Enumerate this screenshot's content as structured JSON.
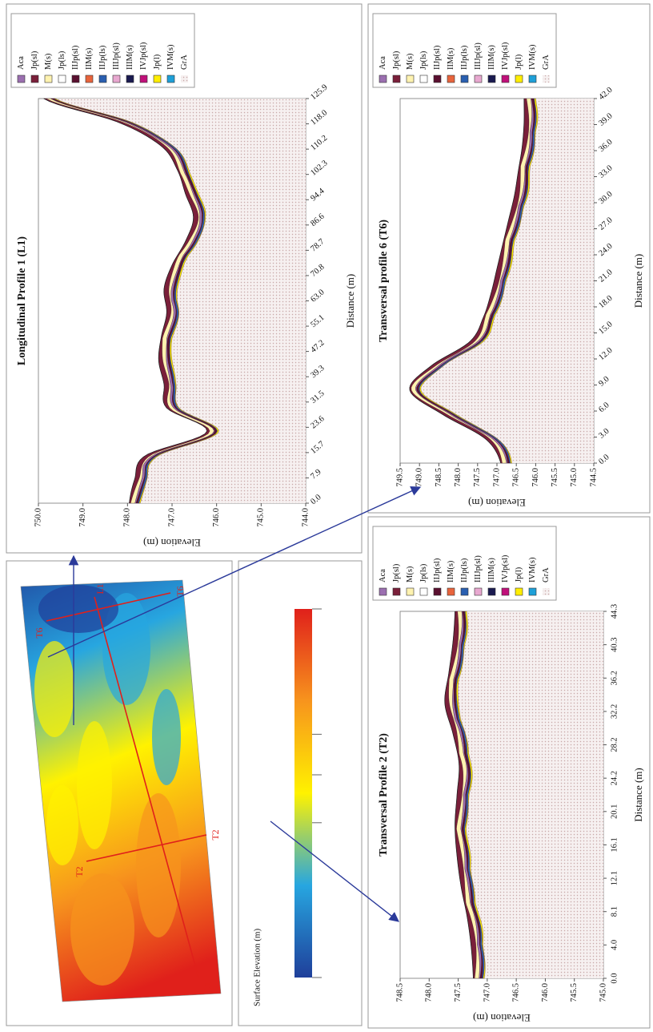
{
  "map": {
    "markers": [
      "T6",
      "L1",
      "T6",
      "T2",
      "T2",
      "L1"
    ]
  },
  "colorbar": {
    "title": "Surface Elevation (m)",
    "colors": [
      "#1f3f9a",
      "#27a6e0",
      "#fff200",
      "#f7941d",
      "#e0201b"
    ]
  },
  "profiles": [
    {
      "title": "Longitudinal Profile 1 (L1)",
      "y_label": "Elevation (m)",
      "x_label": "Distance (m)",
      "yticks": [
        "750.0",
        "749.0",
        "748.0",
        "747.0",
        "746.0",
        "745.0",
        "744.0"
      ],
      "xticks": [
        "0.0",
        "7.9",
        "15.7",
        "23.6",
        "31.5",
        "39.3",
        "47.2",
        "55.1",
        "63.0",
        "70.8",
        "78.7",
        "86.6",
        "94.4",
        "102.3",
        "110.2",
        "118.0",
        "125.9"
      ],
      "legend": [
        {
          "name": "Aca",
          "color": "#9b6fb0"
        },
        {
          "name": "Jp(sl)",
          "color": "#7a1f3a"
        },
        {
          "name": "M(s)",
          "color": "#fff3b0"
        },
        {
          "name": "Jp(ls)",
          "color": "#ffffff"
        },
        {
          "name": "IIJp(sl)",
          "color": "#5a1030"
        },
        {
          "name": "IIM(s)",
          "color": "#e8643c"
        },
        {
          "name": "IIJp(ls)",
          "color": "#2a5fb0"
        },
        {
          "name": "IIIJp(sl)",
          "color": "#e8a8d0"
        },
        {
          "name": "IIIM(s)",
          "color": "#1a1a50"
        },
        {
          "name": "IVJp(sl)",
          "color": "#c0107a"
        },
        {
          "name": "Jp(l)",
          "color": "#ffee00"
        },
        {
          "name": "IVM(s)",
          "color": "#1ea0d8"
        },
        {
          "name": "GrA",
          "color": "#c9a9a9"
        }
      ]
    },
    {
      "title": "Transversal Profile 2 (T2)",
      "y_label": "Elevation (m)",
      "x_label": "Distance (m)",
      "yticks": [
        "748.5",
        "748.0",
        "747.5",
        "747.0",
        "746.5",
        "746.0",
        "745.5",
        "745.0"
      ],
      "xticks": [
        "0.0",
        "4.0",
        "8.1",
        "12.1",
        "16.1",
        "20.1",
        "24.2",
        "28.2",
        "32.2",
        "36.2",
        "40.3",
        "44.3"
      ],
      "legend": [
        {
          "name": "Aca",
          "color": "#9b6fb0"
        },
        {
          "name": "Jp(sl)",
          "color": "#7a1f3a"
        },
        {
          "name": "M(s)",
          "color": "#fff3b0"
        },
        {
          "name": "Jp(ls)",
          "color": "#ffffff"
        },
        {
          "name": "IIJp(sl)",
          "color": "#5a1030"
        },
        {
          "name": "IIM(s)",
          "color": "#e8643c"
        },
        {
          "name": "IIJp(ls)",
          "color": "#2a5fb0"
        },
        {
          "name": "IIIJp(sl)",
          "color": "#e8a8d0"
        },
        {
          "name": "IIIM(s)",
          "color": "#1a1a50"
        },
        {
          "name": "IVJp(sl)",
          "color": "#c0107a"
        },
        {
          "name": "Jp(l)",
          "color": "#ffee00"
        },
        {
          "name": "IVM(s)",
          "color": "#1ea0d8"
        },
        {
          "name": "GrA",
          "color": "#c9a9a9"
        }
      ]
    },
    {
      "title": "Transversal profile 6 (T6)",
      "y_label": "Elevation (m)",
      "x_label": "Distance (m)",
      "yticks": [
        "749.5",
        "749.0",
        "748.5",
        "748.0",
        "747.5",
        "747.0",
        "746.5",
        "746.0",
        "745.5",
        "745.0",
        "744.5"
      ],
      "xticks": [
        "0.0",
        "3.0",
        "6.0",
        "9.0",
        "12.0",
        "15.0",
        "18.0",
        "21.0",
        "24.0",
        "27.0",
        "30.0",
        "33.0",
        "36.0",
        "39.0",
        "42.0"
      ],
      "legend": [
        {
          "name": "Aca",
          "color": "#9b6fb0"
        },
        {
          "name": "Jp(sl)",
          "color": "#7a1f3a"
        },
        {
          "name": "M(s)",
          "color": "#fff3b0"
        },
        {
          "name": "Jp(ls)",
          "color": "#ffffff"
        },
        {
          "name": "IIJp(sl)",
          "color": "#5a1030"
        },
        {
          "name": "IIM(s)",
          "color": "#e8643c"
        },
        {
          "name": "IIJp(ls)",
          "color": "#2a5fb0"
        },
        {
          "name": "IIIJp(sl)",
          "color": "#e8a8d0"
        },
        {
          "name": "IIIM(s)",
          "color": "#1a1a50"
        },
        {
          "name": "IVJp(sl)",
          "color": "#c0107a"
        },
        {
          "name": "Jp(l)",
          "color": "#ffee00"
        },
        {
          "name": "IVM(s)",
          "color": "#1ea0d8"
        },
        {
          "name": "GrA",
          "color": "#c9a9a9"
        }
      ]
    }
  ]
}
